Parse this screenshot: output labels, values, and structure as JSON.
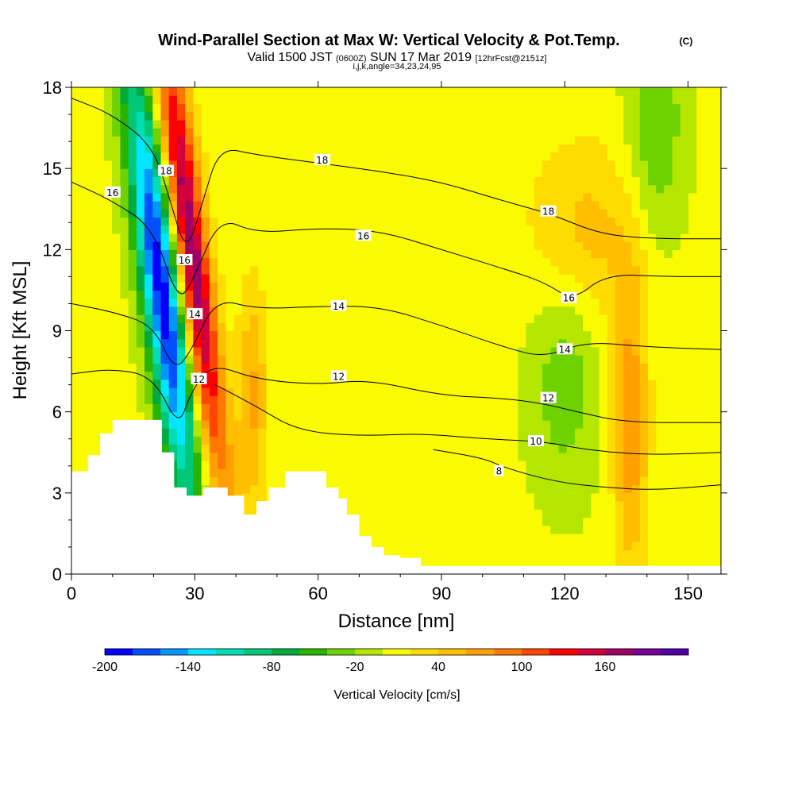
{
  "chart_data": {
    "type": "heatmap",
    "title": "Wind-Parallel Section at Max W: Vertical Velocity & Pot.Temp.",
    "title_mark": "(C)",
    "subtitle": {
      "valid": "Valid 1500 JST",
      "utc": "(0600Z)",
      "date": "SUN 17 Mar 2019",
      "fcst": "[12hrFcst@2151z]"
    },
    "indices": "i,j,k,angle=34,23,24,95",
    "xlabel": "Distance [nm]",
    "ylabel": "Height [Kft MSL]",
    "xlim": [
      0,
      158
    ],
    "ylim": [
      0,
      18
    ],
    "x_ticks": [
      0,
      30,
      60,
      90,
      120,
      150
    ],
    "y_ticks": [
      0,
      3,
      6,
      9,
      12,
      15,
      18
    ],
    "colorbar": {
      "label": "Vertical Velocity [cm/s]",
      "range": [
        -200,
        200
      ],
      "step": 20,
      "tick_labels": [
        "-200",
        "-140",
        "-80",
        "-20",
        "40",
        "100",
        "160"
      ],
      "tick_values": [
        -200,
        -140,
        -80,
        -20,
        40,
        100,
        160
      ],
      "colors": [
        "#0000ff",
        "#0050ff",
        "#0096ff",
        "#00e6ff",
        "#00dcb4",
        "#00c878",
        "#00aa3c",
        "#28b400",
        "#6ed200",
        "#b4e600",
        "#fafa00",
        "#ffdc00",
        "#ffbe00",
        "#ffa000",
        "#ff7800",
        "#ff4600",
        "#ff0000",
        "#d2003c",
        "#a00064",
        "#780096",
        "#5000a0"
      ]
    },
    "terrain_kft": [
      [
        0,
        3.8
      ],
      [
        4,
        4.4
      ],
      [
        7,
        5.2
      ],
      [
        10,
        5.7
      ],
      [
        14,
        5.7
      ],
      [
        18,
        5.7
      ],
      [
        22,
        4.5
      ],
      [
        25,
        3.2
      ],
      [
        28,
        2.9
      ],
      [
        32,
        3.2
      ],
      [
        38,
        2.9
      ],
      [
        42,
        2.2
      ],
      [
        45,
        2.7
      ],
      [
        48,
        3.2
      ],
      [
        52,
        3.8
      ],
      [
        58,
        3.8
      ],
      [
        62,
        3.2
      ],
      [
        65,
        2.8
      ],
      [
        67,
        2.2
      ],
      [
        70,
        1.4
      ],
      [
        73,
        1.0
      ],
      [
        76,
        0.7
      ],
      [
        80,
        0.6
      ],
      [
        85,
        0.3
      ],
      [
        158,
        0.3
      ]
    ],
    "w_features": [
      {
        "name": "downdraft core",
        "x": 22,
        "y": 10.5,
        "sx": 3.5,
        "sy": 6,
        "tilt": -0.28,
        "value": -200
      },
      {
        "name": "updraft core",
        "x": 29,
        "y": 12.0,
        "sx": 3.0,
        "sy": 6.5,
        "tilt": -0.28,
        "value": 180
      },
      {
        "name": "weak downdraft",
        "x": 120,
        "y": 7.5,
        "sx": 6,
        "sy": 3,
        "tilt": 0,
        "value": -40
      },
      {
        "name": "upper downdraft",
        "x": 142,
        "y": 16.5,
        "sx": 5,
        "sy": 3,
        "tilt": 0,
        "value": -45
      },
      {
        "name": "updraft band",
        "x": 136,
        "y": 5.5,
        "sx": 3,
        "sy": 4,
        "tilt": 0,
        "value": 70
      },
      {
        "name": "upper updraft",
        "x": 125,
        "y": 12.5,
        "sx": 10,
        "sy": 2.5,
        "tilt": 0,
        "value": 45
      },
      {
        "name": "low updraft",
        "x": 44,
        "y": 6.5,
        "sx": 2.5,
        "sy": 3,
        "tilt": 0,
        "value": 60
      }
    ],
    "contours": [
      {
        "level": "8",
        "points": [
          [
            88,
            4.6
          ],
          [
            100,
            4.3
          ],
          [
            106,
            3.9
          ],
          [
            118,
            3.4
          ],
          [
            130,
            3.2
          ],
          [
            142,
            3.1
          ],
          [
            158,
            3.3
          ]
        ]
      },
      {
        "level": "10",
        "points": [
          [
            35,
            7.0
          ],
          [
            45,
            6.2
          ],
          [
            55,
            5.3
          ],
          [
            70,
            5.1
          ],
          [
            85,
            5.2
          ],
          [
            100,
            5.0
          ],
          [
            115,
            4.9
          ],
          [
            125,
            4.6
          ],
          [
            140,
            4.4
          ],
          [
            158,
            4.5
          ]
        ]
      },
      {
        "level": "12",
        "points": [
          [
            0,
            7.4
          ],
          [
            10,
            7.6
          ],
          [
            20,
            7.3
          ],
          [
            26,
            5.4
          ],
          [
            29,
            6.7
          ],
          [
            34,
            7.8
          ],
          [
            45,
            7.2
          ],
          [
            60,
            7.0
          ],
          [
            72,
            7.2
          ],
          [
            90,
            6.6
          ],
          [
            105,
            6.5
          ],
          [
            115,
            6.3
          ],
          [
            123,
            6.0
          ],
          [
            135,
            5.6
          ],
          [
            158,
            5.6
          ]
        ]
      },
      {
        "level": "14",
        "points": [
          [
            0,
            10.0
          ],
          [
            10,
            9.7
          ],
          [
            20,
            9.2
          ],
          [
            25,
            7.5
          ],
          [
            29,
            8.2
          ],
          [
            35,
            10.2
          ],
          [
            45,
            9.8
          ],
          [
            60,
            9.9
          ],
          [
            75,
            9.9
          ],
          [
            90,
            9.2
          ],
          [
            105,
            8.4
          ],
          [
            115,
            8.0
          ],
          [
            125,
            8.6
          ],
          [
            140,
            8.4
          ],
          [
            158,
            8.3
          ]
        ]
      },
      {
        "level": "16",
        "points": [
          [
            0,
            14.5
          ],
          [
            10,
            13.8
          ],
          [
            20,
            12.8
          ],
          [
            26,
            10.0
          ],
          [
            30,
            11.0
          ],
          [
            36,
            13.2
          ],
          [
            45,
            12.6
          ],
          [
            60,
            12.8
          ],
          [
            75,
            12.7
          ],
          [
            90,
            12.0
          ],
          [
            105,
            11.3
          ],
          [
            115,
            10.8
          ],
          [
            122,
            10.1
          ],
          [
            130,
            11.1
          ],
          [
            145,
            11.0
          ],
          [
            158,
            11.0
          ]
        ]
      },
      {
        "level": "18",
        "points": [
          [
            0,
            17.6
          ],
          [
            10,
            17.0
          ],
          [
            20,
            15.8
          ],
          [
            24,
            13.8
          ],
          [
            28,
            11.8
          ],
          [
            32,
            13.8
          ],
          [
            36,
            15.8
          ],
          [
            45,
            15.5
          ],
          [
            60,
            15.2
          ],
          [
            75,
            14.9
          ],
          [
            90,
            14.5
          ],
          [
            105,
            13.8
          ],
          [
            117,
            13.3
          ],
          [
            128,
            12.6
          ],
          [
            140,
            12.4
          ],
          [
            158,
            12.4
          ]
        ]
      }
    ],
    "contour_labels": [
      {
        "text": "16",
        "x": 10,
        "y": 14.1
      },
      {
        "text": "18",
        "x": 23,
        "y": 14.9
      },
      {
        "text": "16",
        "x": 27.5,
        "y": 11.6
      },
      {
        "text": "14",
        "x": 30,
        "y": 9.6
      },
      {
        "text": "12",
        "x": 31,
        "y": 7.2
      },
      {
        "text": "18",
        "x": 61,
        "y": 15.3
      },
      {
        "text": "16",
        "x": 71,
        "y": 12.5
      },
      {
        "text": "14",
        "x": 65,
        "y": 9.9
      },
      {
        "text": "12",
        "x": 65,
        "y": 7.3
      },
      {
        "text": "18",
        "x": 116,
        "y": 13.4
      },
      {
        "text": "16",
        "x": 121,
        "y": 10.2
      },
      {
        "text": "14",
        "x": 120,
        "y": 8.3
      },
      {
        "text": "12",
        "x": 116,
        "y": 6.5
      },
      {
        "text": "10",
        "x": 113,
        "y": 4.9
      },
      {
        "text": "8",
        "x": 104,
        "y": 3.8
      }
    ],
    "grid": false
  }
}
